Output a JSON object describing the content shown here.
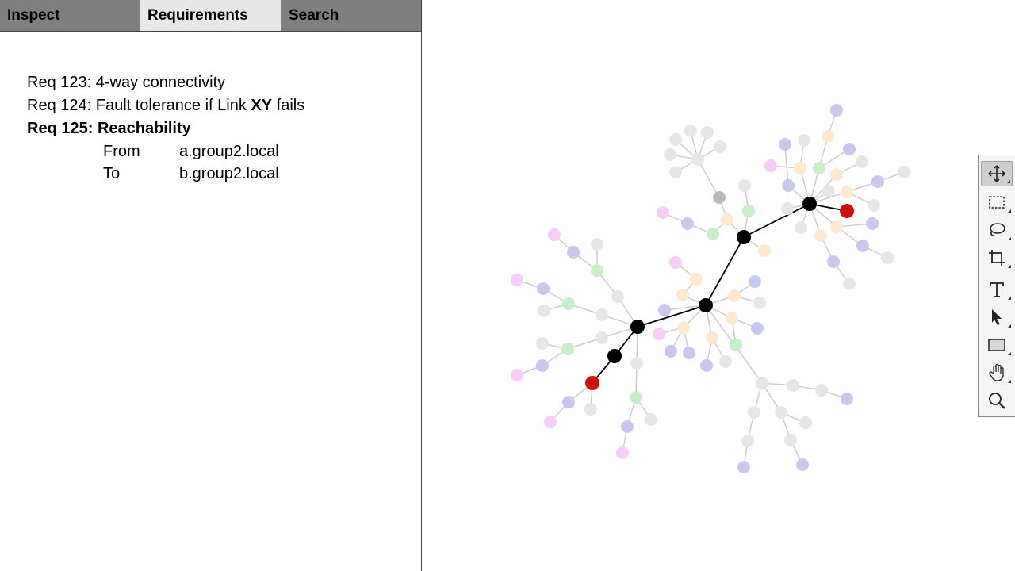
{
  "tabs": [
    {
      "label": "Inspect",
      "active": false
    },
    {
      "label": "Requirements",
      "active": true
    },
    {
      "label": "Search",
      "active": false
    }
  ],
  "requirements": [
    {
      "id": "Req 123:",
      "text": "4-way connectivity"
    },
    {
      "id": "Req 124:",
      "text_before": "Fault tolerance if Link",
      "link": "XY",
      "text_after": "fails"
    },
    {
      "id": "Req 125:",
      "text": "Reachability",
      "selected": true,
      "details": [
        {
          "key": "From",
          "value": "a.group2.local"
        },
        {
          "key": "To",
          "value": "b.group2.local"
        }
      ]
    }
  ],
  "colors": {
    "tab_bar": "#7f7f7f",
    "tab_active": "#e7e7e7",
    "path_node": "#000000",
    "endpoint_node": "#d10f0f",
    "node_gray": "#e6e6e6",
    "node_blue": "#c8c8ee",
    "node_orange": "#fde9cf",
    "node_green": "#c9ecc9",
    "node_pink": "#f6cdf6",
    "node_dark_gray": "#b8b8b8",
    "edge": "#cccccc"
  },
  "toolbar": {
    "tools": [
      {
        "name": "move-tool",
        "icon": "move-icon",
        "active": true
      },
      {
        "name": "rect-select-tool",
        "icon": "marquee-icon"
      },
      {
        "name": "lasso-tool",
        "icon": "lasso-icon"
      },
      {
        "name": "crop-tool",
        "icon": "crop-icon"
      },
      {
        "name": "text-tool",
        "icon": "text-icon"
      },
      {
        "name": "pointer-tool",
        "icon": "pointer-icon"
      },
      {
        "name": "rectangle-tool",
        "icon": "rectangle-icon"
      },
      {
        "name": "hand-tool",
        "icon": "hand-icon"
      },
      {
        "name": "zoom-tool",
        "icon": "zoom-icon"
      }
    ]
  }
}
